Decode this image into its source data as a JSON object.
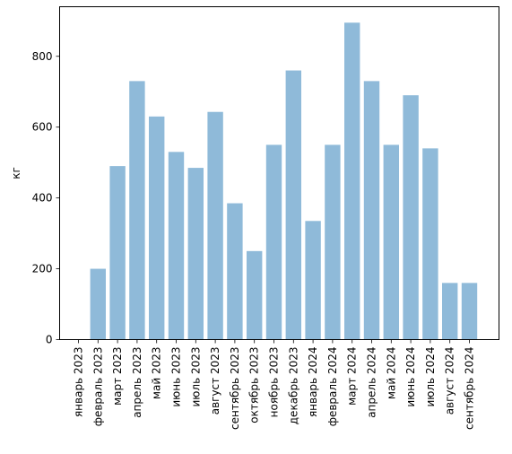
{
  "chart_data": {
    "type": "bar",
    "categories": [
      "январь 2023",
      "февраль 2023",
      "март 2023",
      "апрель 2023",
      "май 2023",
      "июнь 2023",
      "июль 2023",
      "август 2023",
      "сентябрь 2023",
      "октябрь 2023",
      "ноябрь 2023",
      "декабрь 2023",
      "январь 2024",
      "февраль 2024",
      "март 2024",
      "апрель 2024",
      "май 2024",
      "июнь 2024",
      "июль 2024",
      "август 2024",
      "сентябрь 2024"
    ],
    "values": [
      0,
      200,
      490,
      730,
      630,
      530,
      485,
      643,
      385,
      250,
      550,
      760,
      335,
      550,
      895,
      730,
      550,
      690,
      540,
      160,
      160
    ],
    "title": "",
    "xlabel": "",
    "ylabel": "кг",
    "ylim": [
      0,
      940
    ],
    "yticks": [
      0,
      200,
      400,
      600,
      800
    ],
    "grid": false,
    "bar_color": "#8fbad9"
  }
}
